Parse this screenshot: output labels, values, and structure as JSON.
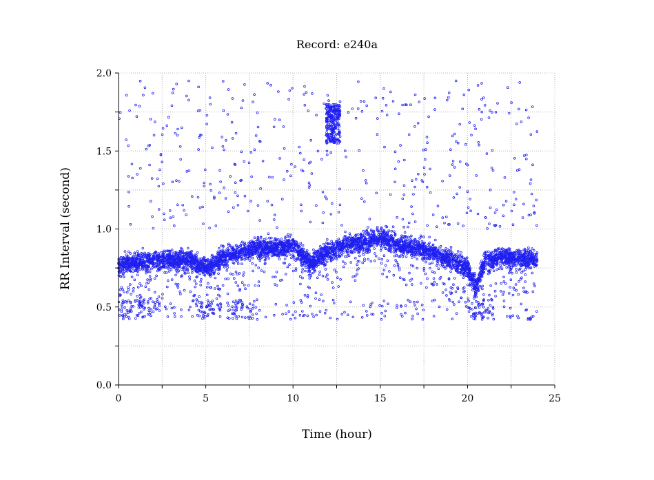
{
  "chart_data": {
    "type": "scatter",
    "title": "Record:  e240a",
    "xlabel": "Time (hour)",
    "ylabel": "RR Interval (second)",
    "xlim": [
      0,
      25
    ],
    "ylim": [
      0.0,
      2.0
    ],
    "x_ticks": [
      "0",
      "5",
      "10",
      "15",
      "20",
      "25"
    ],
    "y_ticks": [
      "0.0",
      "0.5",
      "1.0",
      "1.5",
      "2.0"
    ],
    "grid": true,
    "marker": "open-circle",
    "series": [
      {
        "color": "#1f1ff0",
        "approximate_profile": {
          "description_units": "x in hours, y in seconds",
          "baseline_x": [
            0,
            1,
            2,
            3,
            4,
            5,
            6,
            7,
            8,
            9,
            10,
            11,
            12,
            13,
            14,
            15,
            16,
            17,
            18,
            19,
            20,
            20.5,
            21,
            22,
            23,
            24
          ],
          "baseline_y": [
            0.78,
            0.78,
            0.8,
            0.8,
            0.8,
            0.75,
            0.82,
            0.85,
            0.88,
            0.88,
            0.9,
            0.78,
            0.85,
            0.9,
            0.92,
            0.95,
            0.9,
            0.88,
            0.85,
            0.8,
            0.75,
            0.62,
            0.8,
            0.82,
            0.82,
            0.8
          ],
          "upper_cluster": {
            "x_range": [
              11.9,
              12.7
            ],
            "y_range": [
              1.55,
              1.8
            ]
          },
          "lower_cluster": {
            "x_range": [
              0,
              24
            ],
            "y_range": [
              0.42,
              0.55
            ]
          },
          "x_end": 24
        }
      }
    ]
  }
}
